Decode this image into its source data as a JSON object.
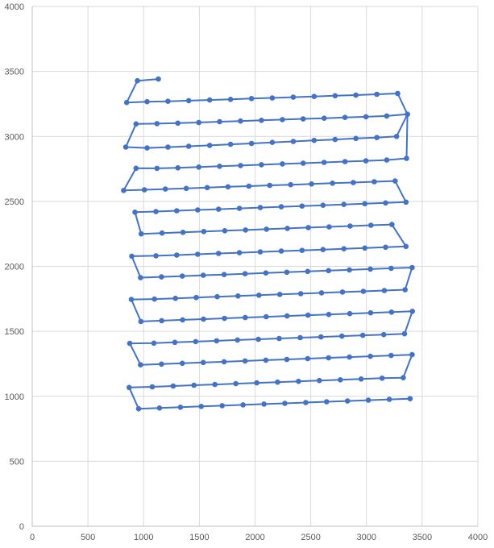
{
  "chart_data": {
    "type": "scatter",
    "title": "",
    "xlabel": "",
    "ylabel": "",
    "xlim": [
      0,
      4000
    ],
    "ylim": [
      0,
      4000
    ],
    "x_ticks": [
      "0",
      "500",
      "1000",
      "1500",
      "2000",
      "2500",
      "3000",
      "3500",
      "4000"
    ],
    "y_ticks": [
      "0",
      "500",
      "1000",
      "1500",
      "2000",
      "2500",
      "3000",
      "3500",
      "4000"
    ],
    "grid": true,
    "legend": "none",
    "colors": {
      "series": "#4472c4",
      "grid": "#d9d9d9",
      "axis": "#bfbfbf",
      "tick_text": "#595959"
    },
    "series": [
      {
        "values": [
          [
            1132,
            3441
          ],
          [
            944,
            3428
          ],
          [
            848,
            3261
          ],
          [
            1031,
            3267
          ],
          [
            1218,
            3270
          ],
          [
            1405,
            3275
          ],
          [
            1593,
            3280
          ],
          [
            1780,
            3285
          ],
          [
            1968,
            3291
          ],
          [
            2155,
            3296
          ],
          [
            2343,
            3302
          ],
          [
            2530,
            3307
          ],
          [
            2718,
            3313
          ],
          [
            2905,
            3318
          ],
          [
            3093,
            3324
          ],
          [
            3280,
            3330
          ],
          [
            3368,
            3170
          ],
          [
            3270,
            3000
          ],
          [
            3093,
            2991
          ],
          [
            2905,
            2984
          ],
          [
            2718,
            2976
          ],
          [
            2530,
            2969
          ],
          [
            2343,
            2961
          ],
          [
            2155,
            2954
          ],
          [
            1968,
            2946
          ],
          [
            1780,
            2939
          ],
          [
            1593,
            2931
          ],
          [
            1405,
            2924
          ],
          [
            1218,
            2917
          ],
          [
            1031,
            2911
          ],
          [
            840,
            2918
          ],
          [
            932,
            3096
          ],
          [
            1120,
            3098
          ],
          [
            1307,
            3102
          ],
          [
            1495,
            3107
          ],
          [
            1682,
            3113
          ],
          [
            1870,
            3118
          ],
          [
            2057,
            3124
          ],
          [
            2245,
            3129
          ],
          [
            2432,
            3135
          ],
          [
            2620,
            3140
          ],
          [
            2807,
            3146
          ],
          [
            2995,
            3151
          ],
          [
            3182,
            3157
          ],
          [
            3368,
            3170
          ],
          [
            3360,
            2831
          ],
          [
            3182,
            2818
          ],
          [
            2995,
            2812
          ],
          [
            2807,
            2806
          ],
          [
            2620,
            2800
          ],
          [
            2432,
            2794
          ],
          [
            2245,
            2788
          ],
          [
            2057,
            2782
          ],
          [
            1870,
            2776
          ],
          [
            1682,
            2770
          ],
          [
            1495,
            2764
          ],
          [
            1307,
            2758
          ],
          [
            1120,
            2754
          ],
          [
            932,
            2755
          ],
          [
            820,
            2584
          ],
          [
            1007,
            2589
          ],
          [
            1195,
            2595
          ],
          [
            1382,
            2600
          ],
          [
            1570,
            2606
          ],
          [
            1757,
            2612
          ],
          [
            1945,
            2617
          ],
          [
            2132,
            2623
          ],
          [
            2320,
            2628
          ],
          [
            2507,
            2634
          ],
          [
            2695,
            2640
          ],
          [
            2882,
            2645
          ],
          [
            3070,
            2651
          ],
          [
            3257,
            2657
          ],
          [
            3355,
            2494
          ],
          [
            3172,
            2488
          ],
          [
            2985,
            2482
          ],
          [
            2797,
            2476
          ],
          [
            2610,
            2470
          ],
          [
            2422,
            2464
          ],
          [
            2235,
            2458
          ],
          [
            2047,
            2452
          ],
          [
            1860,
            2446
          ],
          [
            1672,
            2440
          ],
          [
            1485,
            2434
          ],
          [
            1297,
            2428
          ],
          [
            1110,
            2422
          ],
          [
            922,
            2417
          ],
          [
            978,
            2250
          ],
          [
            1165,
            2256
          ],
          [
            1353,
            2262
          ],
          [
            1540,
            2268
          ],
          [
            1728,
            2274
          ],
          [
            1915,
            2280
          ],
          [
            2103,
            2286
          ],
          [
            2290,
            2292
          ],
          [
            2478,
            2298
          ],
          [
            2665,
            2304
          ],
          [
            2853,
            2310
          ],
          [
            3040,
            2316
          ],
          [
            3228,
            2322
          ],
          [
            3355,
            2153
          ],
          [
            3172,
            2147
          ],
          [
            2985,
            2141
          ],
          [
            2797,
            2135
          ],
          [
            2610,
            2129
          ],
          [
            2422,
            2123
          ],
          [
            2235,
            2117
          ],
          [
            2047,
            2111
          ],
          [
            1860,
            2105
          ],
          [
            1672,
            2099
          ],
          [
            1485,
            2093
          ],
          [
            1297,
            2087
          ],
          [
            1110,
            2081
          ],
          [
            893,
            2078
          ],
          [
            972,
            1913
          ],
          [
            1160,
            1919
          ],
          [
            1347,
            1925
          ],
          [
            1535,
            1931
          ],
          [
            1722,
            1937
          ],
          [
            1910,
            1943
          ],
          [
            2097,
            1949
          ],
          [
            2285,
            1955
          ],
          [
            2472,
            1961
          ],
          [
            2660,
            1967
          ],
          [
            2847,
            1973
          ],
          [
            3035,
            1979
          ],
          [
            3222,
            1985
          ],
          [
            3410,
            1991
          ],
          [
            3347,
            1820
          ],
          [
            3160,
            1814
          ],
          [
            2972,
            1808
          ],
          [
            2785,
            1802
          ],
          [
            2597,
            1796
          ],
          [
            2410,
            1790
          ],
          [
            2222,
            1784
          ],
          [
            2035,
            1778
          ],
          [
            1847,
            1772
          ],
          [
            1660,
            1766
          ],
          [
            1472,
            1760
          ],
          [
            1285,
            1754
          ],
          [
            1097,
            1748
          ],
          [
            890,
            1745
          ],
          [
            975,
            1576
          ],
          [
            1162,
            1582
          ],
          [
            1350,
            1588
          ],
          [
            1537,
            1594
          ],
          [
            1725,
            1600
          ],
          [
            1912,
            1606
          ],
          [
            2100,
            1612
          ],
          [
            2287,
            1618
          ],
          [
            2475,
            1624
          ],
          [
            2662,
            1630
          ],
          [
            2850,
            1636
          ],
          [
            3037,
            1642
          ],
          [
            3225,
            1648
          ],
          [
            3412,
            1654
          ],
          [
            3342,
            1481
          ],
          [
            3155,
            1475
          ],
          [
            2967,
            1469
          ],
          [
            2780,
            1463
          ],
          [
            2592,
            1457
          ],
          [
            2405,
            1451
          ],
          [
            2217,
            1445
          ],
          [
            2030,
            1439
          ],
          [
            1842,
            1433
          ],
          [
            1655,
            1427
          ],
          [
            1467,
            1421
          ],
          [
            1280,
            1415
          ],
          [
            1092,
            1409
          ],
          [
            875,
            1407
          ],
          [
            972,
            1242
          ],
          [
            1160,
            1248
          ],
          [
            1347,
            1254
          ],
          [
            1535,
            1260
          ],
          [
            1722,
            1266
          ],
          [
            1910,
            1272
          ],
          [
            2097,
            1278
          ],
          [
            2285,
            1284
          ],
          [
            2472,
            1290
          ],
          [
            2660,
            1296
          ],
          [
            2847,
            1302
          ],
          [
            3035,
            1308
          ],
          [
            3222,
            1314
          ],
          [
            3410,
            1320
          ],
          [
            3330,
            1143
          ],
          [
            3140,
            1139
          ],
          [
            2952,
            1133
          ],
          [
            2765,
            1127
          ],
          [
            2577,
            1121
          ],
          [
            2390,
            1115
          ],
          [
            2202,
            1109
          ],
          [
            2015,
            1103
          ],
          [
            1827,
            1097
          ],
          [
            1640,
            1091
          ],
          [
            1452,
            1085
          ],
          [
            1265,
            1079
          ],
          [
            1077,
            1073
          ],
          [
            870,
            1068
          ],
          [
            955,
            904
          ],
          [
            1142,
            910
          ],
          [
            1330,
            916
          ],
          [
            1517,
            922
          ],
          [
            1705,
            928
          ],
          [
            1892,
            934
          ],
          [
            2080,
            940
          ],
          [
            2267,
            946
          ],
          [
            2455,
            952
          ],
          [
            2642,
            958
          ],
          [
            2830,
            964
          ],
          [
            3017,
            970
          ],
          [
            3205,
            976
          ],
          [
            3392,
            982
          ]
        ]
      }
    ]
  }
}
